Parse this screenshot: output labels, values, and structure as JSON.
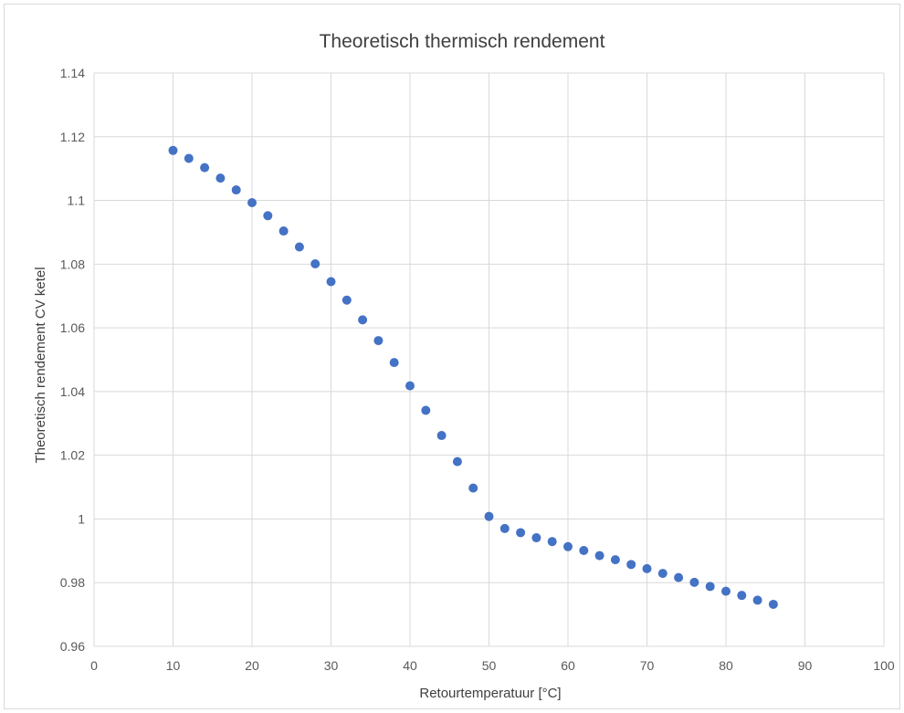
{
  "chart_data": {
    "type": "scatter",
    "title": "Theoretisch thermisch rendement",
    "xlabel": "Retourtemperatuur [°C]",
    "ylabel": "Theoretisch rendement CV ketel",
    "xlim": [
      0,
      100
    ],
    "ylim": [
      0.96,
      1.14
    ],
    "xticks": [
      0,
      10,
      20,
      30,
      40,
      50,
      60,
      70,
      80,
      90,
      100
    ],
    "yticks": [
      0.96,
      0.98,
      1,
      1.02,
      1.04,
      1.06,
      1.08,
      1.1,
      1.12,
      1.14
    ],
    "ytick_labels": [
      "0.96",
      "0.98",
      "1",
      "1.02",
      "1.04",
      "1.06",
      "1.08",
      "1.1",
      "1.12",
      "1.14"
    ],
    "grid": true,
    "legend": "none",
    "marker_color": "#4472c4",
    "series": [
      {
        "x": [
          10,
          12,
          14,
          16,
          18,
          20,
          22,
          24,
          26,
          28,
          30,
          32,
          34,
          36,
          38,
          40,
          42,
          44,
          46,
          48,
          50,
          52,
          54,
          56,
          58,
          60,
          62,
          64,
          66,
          68,
          70,
          72,
          74,
          76,
          78,
          80,
          82,
          84,
          86
        ],
        "y": [
          1.1157,
          1.1132,
          1.1103,
          1.107,
          1.1033,
          1.0993,
          1.0952,
          1.0904,
          1.0854,
          1.0801,
          1.0745,
          1.0687,
          1.0625,
          1.056,
          1.0491,
          1.0418,
          1.0341,
          1.0262,
          1.018,
          1.0097,
          1.0008,
          0.997,
          0.9957,
          0.9941,
          0.9929,
          0.9913,
          0.9901,
          0.9885,
          0.9872,
          0.9857,
          0.9844,
          0.9829,
          0.9816,
          0.9801,
          0.9788,
          0.9773,
          0.976,
          0.9745,
          0.9732
        ]
      }
    ]
  }
}
